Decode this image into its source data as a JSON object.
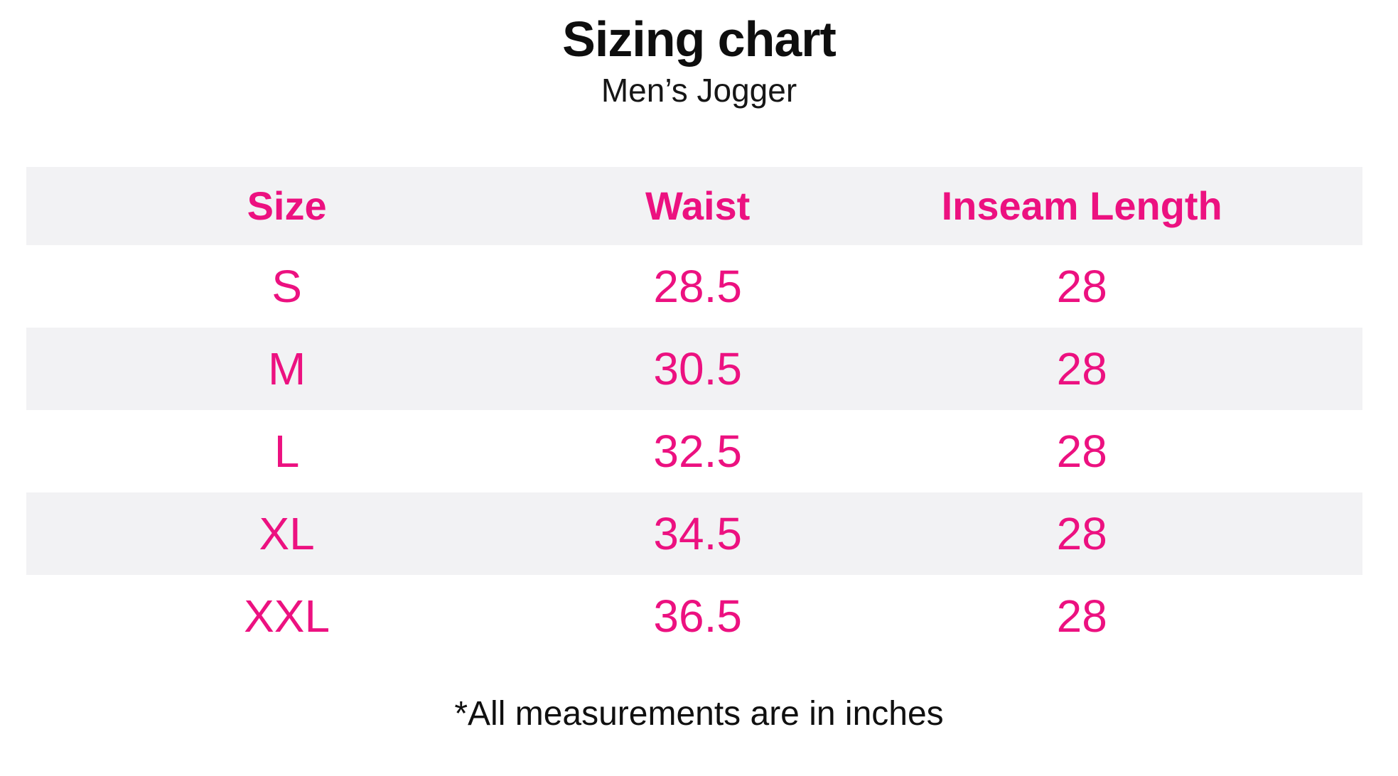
{
  "title": "Sizing chart",
  "subtitle": "Men’s Jogger",
  "table": {
    "columns": [
      "Size",
      "Waist",
      "Inseam Length"
    ],
    "rows": [
      {
        "size": "S",
        "waist": "28.5",
        "inseam": "28"
      },
      {
        "size": "M",
        "waist": "30.5",
        "inseam": "28"
      },
      {
        "size": "L",
        "waist": "32.5",
        "inseam": "28"
      },
      {
        "size": "XL",
        "waist": "34.5",
        "inseam": "28"
      },
      {
        "size": "XXL",
        "waist": "36.5",
        "inseam": "28"
      }
    ]
  },
  "footnote": "*All measurements are in inches",
  "colors": {
    "accent_pink": "#ec1180",
    "stripe_gray": "#f2f2f4",
    "text_black": "#0e0e0e"
  },
  "units": "inches"
}
